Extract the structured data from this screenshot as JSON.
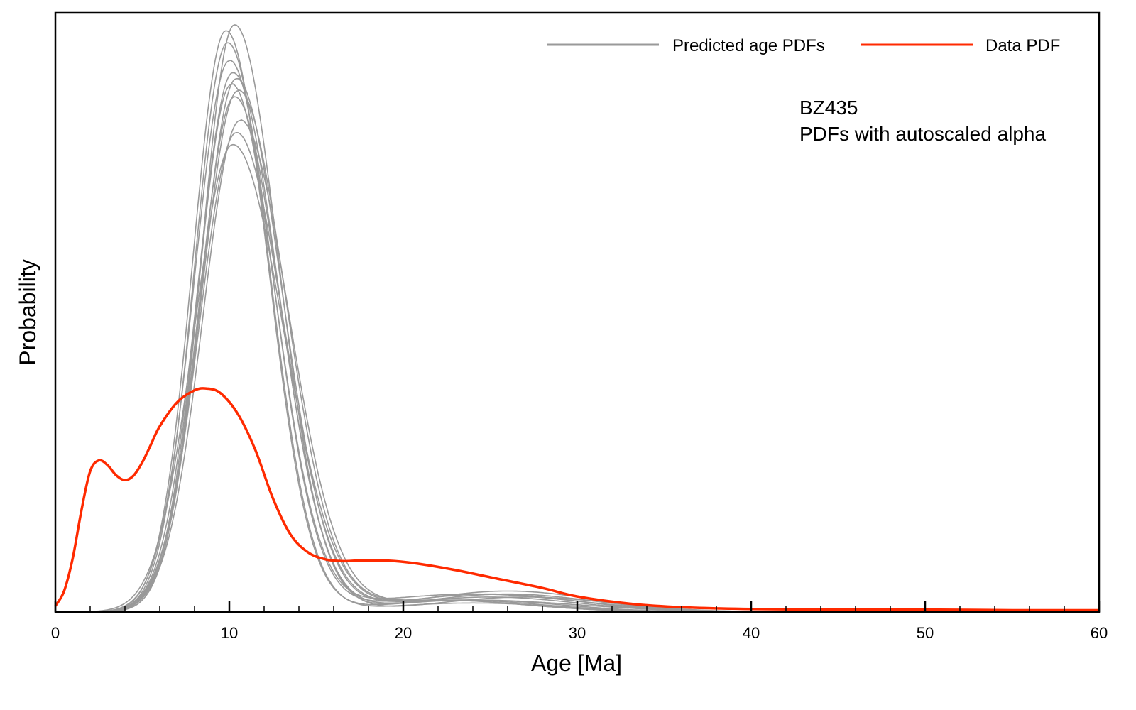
{
  "chart_data": {
    "type": "line",
    "xlabel": "Age [Ma]",
    "ylabel": "Probability",
    "xlim": [
      0,
      60
    ],
    "ylim": [
      0,
      1
    ],
    "x_ticks": [
      "0",
      "10",
      "20",
      "30",
      "40",
      "50",
      "60"
    ],
    "y_ticks": [],
    "grid": false,
    "legend_placement": "top-right",
    "annotation": [
      "BZ435",
      "PDFs with autoscaled alpha"
    ],
    "series": [
      {
        "name": "Predicted age PDFs",
        "color": "#999999",
        "curves": [
          {
            "mode": 9.8,
            "peak": 0.97,
            "sigma_left": 1.9,
            "sigma_right": 2.4,
            "tail_weight": 0.02,
            "tail_mean": 24,
            "tail_sigma": 5
          },
          {
            "mode": 10.3,
            "peak": 0.98,
            "sigma_left": 1.9,
            "sigma_right": 2.5,
            "tail_weight": 0.03,
            "tail_mean": 26,
            "tail_sigma": 5
          },
          {
            "mode": 9.9,
            "peak": 0.95,
            "sigma_left": 1.9,
            "sigma_right": 2.4,
            "tail_weight": 0.015,
            "tail_mean": 24,
            "tail_sigma": 5
          },
          {
            "mode": 10.0,
            "peak": 0.92,
            "sigma_left": 2.0,
            "sigma_right": 2.5,
            "tail_weight": 0.02,
            "tail_mean": 22,
            "tail_sigma": 5
          },
          {
            "mode": 10.2,
            "peak": 0.9,
            "sigma_left": 2.0,
            "sigma_right": 2.6,
            "tail_weight": 0.025,
            "tail_mean": 25,
            "tail_sigma": 5
          },
          {
            "mode": 10.4,
            "peak": 0.89,
            "sigma_left": 2.0,
            "sigma_right": 2.6,
            "tail_weight": 0.02,
            "tail_mean": 23,
            "tail_sigma": 5
          },
          {
            "mode": 10.1,
            "peak": 0.88,
            "sigma_left": 1.9,
            "sigma_right": 2.5,
            "tail_weight": 0.03,
            "tail_mean": 24,
            "tail_sigma": 6
          },
          {
            "mode": 10.5,
            "peak": 0.87,
            "sigma_left": 2.1,
            "sigma_right": 2.7,
            "tail_weight": 0.02,
            "tail_mean": 22,
            "tail_sigma": 5
          },
          {
            "mode": 10.3,
            "peak": 0.86,
            "sigma_left": 2.0,
            "sigma_right": 2.6,
            "tail_weight": 0.025,
            "tail_mean": 27,
            "tail_sigma": 5
          },
          {
            "mode": 10.6,
            "peak": 0.82,
            "sigma_left": 2.1,
            "sigma_right": 2.8,
            "tail_weight": 0.02,
            "tail_mean": 24,
            "tail_sigma": 6
          },
          {
            "mode": 10.4,
            "peak": 0.8,
            "sigma_left": 2.1,
            "sigma_right": 2.7,
            "tail_weight": 0.03,
            "tail_mean": 25,
            "tail_sigma": 5
          },
          {
            "mode": 10.2,
            "peak": 0.78,
            "sigma_left": 2.2,
            "sigma_right": 2.9,
            "tail_weight": 0.035,
            "tail_mean": 26,
            "tail_sigma": 5
          }
        ]
      },
      {
        "name": "Data PDF",
        "color": "#ff2a00",
        "x": [
          0,
          0.5,
          1,
          1.5,
          2,
          2.5,
          3,
          3.5,
          4,
          4.5,
          5,
          5.5,
          6,
          7,
          8,
          8.7,
          9.5,
          10.5,
          11.5,
          12.5,
          13.5,
          14.5,
          15.5,
          16.5,
          17.5,
          18.5,
          19.5,
          21,
          23,
          25,
          28,
          30,
          33,
          36,
          40,
          45,
          50,
          55,
          60
        ],
        "y": [
          0.01,
          0.035,
          0.09,
          0.17,
          0.235,
          0.253,
          0.245,
          0.228,
          0.22,
          0.228,
          0.25,
          0.28,
          0.31,
          0.35,
          0.37,
          0.373,
          0.365,
          0.33,
          0.27,
          0.19,
          0.13,
          0.1,
          0.088,
          0.085,
          0.086,
          0.086,
          0.085,
          0.08,
          0.07,
          0.058,
          0.04,
          0.026,
          0.014,
          0.008,
          0.005,
          0.004,
          0.004,
          0.003,
          0.003
        ]
      }
    ]
  }
}
